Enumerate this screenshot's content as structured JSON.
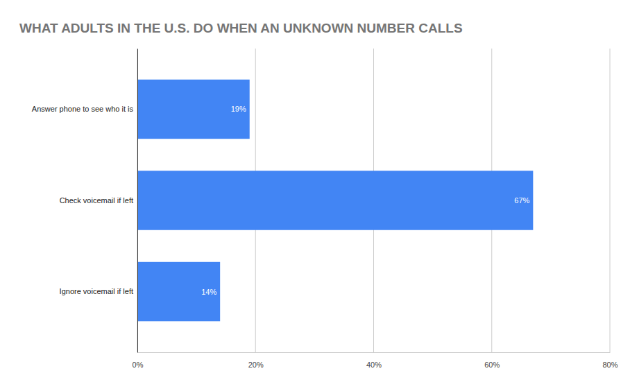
{
  "chart_data": {
    "type": "bar",
    "title": "WHAT ADULTS IN THE U.S. DO WHEN AN UNKNOWN NUMBER CALLS",
    "orientation": "horizontal",
    "categories": [
      "Answer phone to see who it is",
      "Check voicemail if left",
      "Ignore voicemail if left"
    ],
    "values": [
      19,
      67,
      14
    ],
    "value_labels": [
      "19%",
      "67%",
      "14%"
    ],
    "color": "#4285f4",
    "xlim": [
      0,
      80
    ],
    "xticks": [
      {
        "value": 0,
        "label": "0%"
      },
      {
        "value": 20,
        "label": "20%"
      },
      {
        "value": 40,
        "label": "40%"
      },
      {
        "value": 60,
        "label": "60%"
      },
      {
        "value": 80,
        "label": "80%"
      }
    ],
    "grid": true,
    "data_labels": true
  }
}
